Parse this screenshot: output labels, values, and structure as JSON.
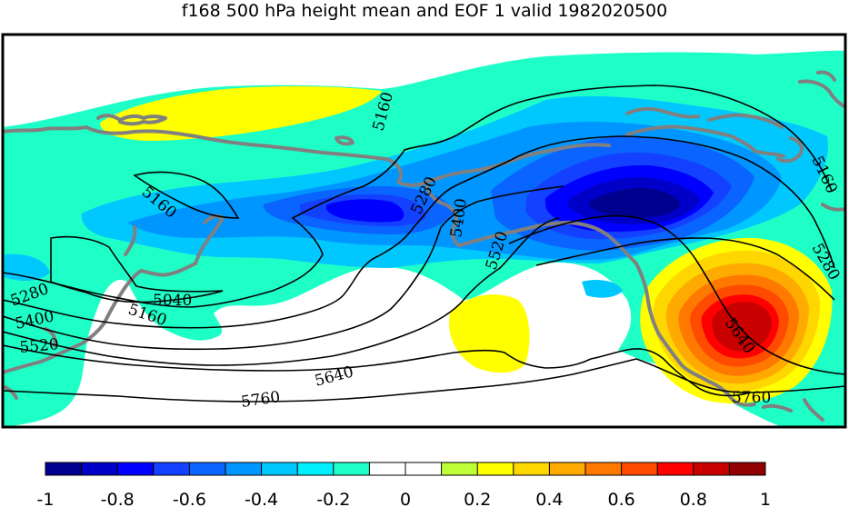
{
  "title": "f168 500 hPa height mean and EOF 1 valid 1982020500",
  "colors": {
    "c_m1": "#00008f",
    "c_m09": "#0000c8",
    "c_m08": "#0000ff",
    "c_m07": "#1440ff",
    "c_m06": "#0a64ff",
    "c_m05": "#0096ff",
    "c_m04": "#00c8ff",
    "c_m03": "#00f0ff",
    "c_m02": "#1effc8",
    "c_pos02": "#beff37",
    "c_pos03": "#ffff00",
    "c_pos04": "#ffd700",
    "c_pos05": "#ffaa00",
    "c_pos06": "#ff7800",
    "c_pos07": "#ff4b00",
    "c_pos08": "#ff0000",
    "c_pos09": "#c80000",
    "c_pos10": "#910000",
    "coast": "#808080",
    "contour": "#000000"
  },
  "contour_labels": [
    "5160",
    "5160",
    "5040",
    "5160",
    "5280",
    "5400",
    "5520",
    "5280",
    "5400",
    "5520",
    "5640",
    "5760",
    "5640",
    "5760",
    "5160",
    "5280"
  ],
  "colorbar": {
    "colors": [
      "#00008f",
      "#0000c8",
      "#0000ff",
      "#1440ff",
      "#0a64ff",
      "#0096ff",
      "#00c8ff",
      "#00f0ff",
      "#1effc8",
      "#ffffff",
      "#ffffff",
      "#beff37",
      "#ffff00",
      "#ffd700",
      "#ffaa00",
      "#ff7800",
      "#ff4b00",
      "#ff0000",
      "#c80000",
      "#910000"
    ],
    "tick_labels": [
      "-1",
      "-0.8",
      "-0.6",
      "-0.4",
      "-0.2",
      "0",
      "0.2",
      "0.4",
      "0.6",
      "0.8",
      "1"
    ]
  }
}
